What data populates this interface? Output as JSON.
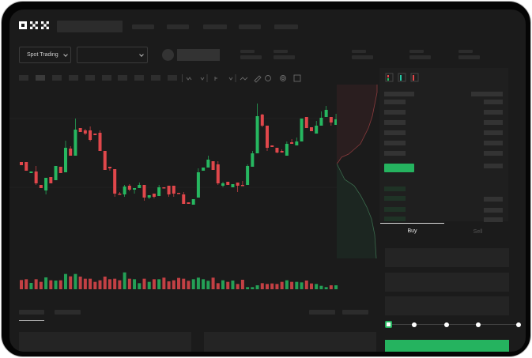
{
  "header": {
    "logo": "OKX"
  },
  "controls": {
    "market_type": "Spot Trading"
  },
  "trade": {
    "buy_tab": "Buy",
    "sell_tab": "Sell",
    "leverage_fraction": 0
  },
  "colors": {
    "up": "#26b760",
    "down": "#e0474b",
    "background": "#1b1b1b",
    "accent": "#25b35f"
  },
  "chart": {
    "type": "candlestick",
    "candles": [
      [
        97,
        97,
        93,
        93
      ],
      [
        97,
        97,
        86,
        86
      ],
      [
        83,
        85,
        83,
        85
      ],
      [
        85,
        92,
        68,
        70
      ],
      [
        68,
        68,
        64,
        64
      ],
      [
        61,
        77,
        56,
        77
      ],
      [
        78,
        78,
        70,
        70
      ],
      [
        74,
        92,
        74,
        92
      ],
      [
        91,
        91,
        83,
        83
      ],
      [
        84,
        124,
        84,
        115
      ],
      [
        114,
        117,
        105,
        105
      ],
      [
        105,
        152,
        105,
        138
      ],
      [
        140,
        140,
        135,
        135
      ],
      [
        137,
        139,
        131,
        133
      ],
      [
        137,
        142,
        123,
        125
      ],
      [
        133,
        133,
        131,
        131
      ],
      [
        134,
        137,
        111,
        111
      ],
      [
        111,
        111,
        87,
        87
      ],
      [
        91,
        91,
        86,
        89
      ],
      [
        88,
        88,
        53,
        57
      ],
      [
        57,
        59,
        56,
        56
      ],
      [
        56,
        68,
        53,
        66
      ],
      [
        67,
        69,
        60,
        62
      ],
      [
        62,
        64,
        57,
        64
      ],
      [
        64,
        71,
        64,
        68
      ],
      [
        68,
        68,
        48,
        52
      ],
      [
        52,
        55,
        50,
        55
      ],
      [
        57,
        57,
        51,
        53
      ],
      [
        54,
        68,
        54,
        65
      ],
      [
        65,
        65,
        64,
        64
      ],
      [
        67,
        67,
        53,
        56
      ],
      [
        67,
        67,
        53,
        57
      ],
      [
        58,
        58,
        57,
        57
      ],
      [
        56,
        59,
        44,
        44
      ],
      [
        46,
        46,
        44,
        44
      ],
      [
        43,
        50,
        43,
        50
      ],
      [
        52,
        89,
        52,
        84
      ],
      [
        86,
        90,
        86,
        90
      ],
      [
        90,
        105,
        90,
        100
      ],
      [
        98,
        98,
        87,
        87
      ],
      [
        94,
        98,
        68,
        70
      ],
      [
        67,
        72,
        65,
        70
      ],
      [
        72,
        72,
        68,
        68
      ],
      [
        65,
        69,
        65,
        69
      ],
      [
        71,
        71,
        59,
        67
      ],
      [
        68,
        73,
        67,
        67
      ],
      [
        68,
        94,
        68,
        92
      ],
      [
        91,
        111,
        91,
        108
      ],
      [
        108,
        171,
        108,
        155
      ],
      [
        157,
        158,
        141,
        143
      ],
      [
        143,
        143,
        111,
        115
      ],
      [
        118,
        118,
        116,
        116
      ],
      [
        115,
        115,
        108,
        109
      ],
      [
        111,
        113,
        109,
        109
      ],
      [
        105,
        123,
        105,
        120
      ],
      [
        122,
        126,
        120,
        120
      ],
      [
        118,
        128,
        118,
        123
      ],
      [
        123,
        152,
        123,
        152
      ],
      [
        154,
        154,
        140,
        140
      ],
      [
        141,
        141,
        136,
        136
      ],
      [
        133,
        149,
        133,
        143
      ],
      [
        143,
        161,
        143,
        153
      ],
      [
        154,
        168,
        154,
        163
      ],
      [
        154,
        154,
        143,
        147
      ],
      [
        144,
        158,
        144,
        151
      ]
    ],
    "volumes": [
      35,
      38,
      24,
      38,
      28,
      45,
      34,
      33,
      34,
      58,
      49,
      58,
      48,
      40,
      40,
      28,
      34,
      48,
      38,
      40,
      34,
      64,
      40,
      38,
      23,
      40,
      28,
      38,
      38,
      44,
      30,
      34,
      43,
      40,
      32,
      38,
      44,
      38,
      32,
      44,
      23,
      34,
      28,
      33,
      20,
      36,
      8,
      8,
      15,
      23,
      20,
      22,
      20,
      28,
      34,
      28,
      28,
      26,
      33,
      22,
      20,
      13,
      8,
      15,
      15
    ]
  }
}
